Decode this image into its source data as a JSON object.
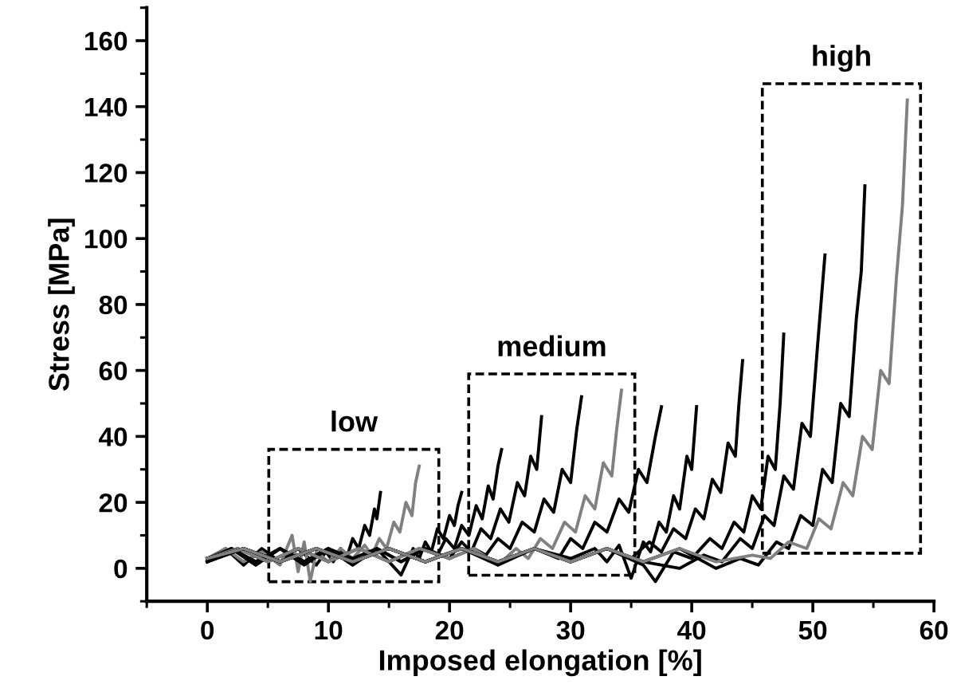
{
  "chart_data": {
    "type": "line",
    "xlabel": "Imposed elongation [%]",
    "ylabel": "Stress [MPa]",
    "xlim": [
      -5,
      60
    ],
    "ylim": [
      -10,
      170
    ],
    "xticks": [
      {
        "value": -5,
        "label": null
      },
      0,
      {
        "value": 5,
        "label": null
      },
      10,
      {
        "value": 15,
        "label": null
      },
      20,
      {
        "value": 25,
        "label": null
      },
      30,
      {
        "value": 35,
        "label": null
      },
      40,
      {
        "value": 45,
        "label": null
      },
      50,
      {
        "value": 55,
        "label": null
      },
      60
    ],
    "yticks": [
      {
        "value": -10,
        "label": null
      },
      0,
      {
        "value": 10,
        "label": null
      },
      20,
      {
        "value": 30,
        "label": null
      },
      40,
      {
        "value": 50,
        "label": null
      },
      60,
      {
        "value": 70,
        "label": null
      },
      80,
      {
        "value": 90,
        "label": null
      },
      100,
      {
        "value": 110,
        "label": null
      },
      120,
      {
        "value": 130,
        "label": null
      },
      140,
      {
        "value": 150,
        "label": null
      },
      160,
      {
        "value": 170,
        "label": null
      }
    ],
    "grid": false,
    "legend": false,
    "marker": "none",
    "line_style": "solid",
    "annotations": [
      "low",
      "medium",
      "high"
    ],
    "series": [
      {
        "color": "#000000",
        "x": [
          0,
          1.5,
          3,
          4.5,
          6,
          7.5,
          9,
          9.8,
          10.4,
          11,
          11.5,
          12,
          12.5,
          13,
          13.4,
          13.8,
          14.0,
          14.3
        ],
        "values": [
          2,
          6,
          1,
          6,
          2,
          6,
          1,
          5,
          2,
          6,
          3,
          9,
          6,
          13,
          10,
          18,
          15,
          23
        ]
      },
      {
        "color": "#808080",
        "x": [
          0,
          1.5,
          3,
          4.5,
          6,
          7,
          7.5,
          8,
          8.5,
          9,
          10,
          11,
          12,
          13,
          13.6,
          14.2,
          14.8,
          15.4,
          15.9,
          16.4,
          16.9,
          17.2,
          17.5
        ],
        "values": [
          3,
          6,
          2,
          5,
          1,
          10,
          -1,
          8,
          -4,
          5,
          2,
          6,
          3,
          7,
          4,
          9,
          6,
          14,
          11,
          20,
          16,
          26,
          31
        ]
      },
      {
        "color": "#000000",
        "x": [
          0,
          2,
          4,
          6,
          8,
          10,
          12,
          14,
          16,
          17,
          17.5,
          18,
          18.5,
          19,
          19.5,
          20,
          20.4,
          20.7,
          21
        ],
        "values": [
          2,
          6,
          1,
          6,
          2,
          6,
          1,
          6,
          -2,
          6,
          3,
          8,
          5,
          12,
          9,
          16,
          13,
          19,
          23
        ]
      },
      {
        "color": "#000000",
        "x": [
          0,
          2,
          4,
          6,
          8,
          10,
          12,
          14,
          16,
          18,
          19,
          19.7,
          20.4,
          21,
          21.6,
          22.2,
          22.7,
          23.2,
          23.6,
          24,
          24.3
        ],
        "values": [
          3,
          6,
          2,
          6,
          1,
          6,
          3,
          6,
          2,
          6,
          4,
          9,
          6,
          13,
          10,
          19,
          15,
          25,
          21,
          31,
          36
        ]
      },
      {
        "color": "#000000",
        "x": [
          0,
          2,
          4,
          6,
          8,
          10,
          12,
          14,
          16,
          18,
          20,
          21,
          21.8,
          22.6,
          23.4,
          24.2,
          24.9,
          25.6,
          26.2,
          26.7,
          27.2,
          27.6
        ],
        "values": [
          2,
          6,
          1,
          6,
          2,
          6,
          1,
          6,
          2,
          6,
          3,
          8,
          5,
          12,
          9,
          18,
          14,
          26,
          22,
          34,
          30,
          46
        ]
      },
      {
        "color": "#000000",
        "x": [
          0,
          2.5,
          5,
          7.5,
          10,
          12.5,
          15,
          17.5,
          20,
          22,
          23,
          24,
          25,
          26,
          27,
          27.8,
          28.6,
          29.3,
          30,
          30.5,
          30.9
        ],
        "values": [
          3,
          6,
          2,
          6,
          2,
          6,
          2,
          6,
          3,
          6,
          4,
          9,
          6,
          14,
          11,
          21,
          17,
          30,
          26,
          42,
          52
        ]
      },
      {
        "color": "#808080",
        "x": [
          0,
          2.5,
          5,
          7.5,
          10,
          12.5,
          15,
          17.5,
          20,
          22,
          24,
          25.5,
          26.5,
          27.5,
          28.5,
          29.5,
          30.4,
          31.2,
          32,
          32.7,
          33.4,
          33.8,
          34.2
        ],
        "values": [
          3,
          6,
          2,
          6,
          2,
          6,
          2,
          6,
          3,
          6,
          1,
          6,
          3,
          9,
          6,
          14,
          11,
          22,
          18,
          32,
          28,
          42,
          54
        ]
      },
      {
        "color": "#000000",
        "x": [
          0,
          3,
          6,
          9,
          12,
          15,
          18,
          21,
          24,
          27,
          29,
          30,
          31,
          32,
          33,
          34,
          34.8,
          35.6,
          36.3,
          37,
          37.5
        ],
        "values": [
          2,
          6,
          2,
          6,
          2,
          6,
          2,
          6,
          1,
          6,
          3,
          9,
          6,
          14,
          11,
          21,
          17,
          30,
          26,
          40,
          49
        ]
      },
      {
        "color": "#000000",
        "x": [
          0,
          3,
          6,
          9,
          12,
          15,
          18,
          21,
          24,
          27,
          30,
          32,
          33,
          34,
          35,
          36,
          36.6,
          37.3,
          37.9,
          38.5,
          39,
          39.6,
          40,
          40.4
        ],
        "values": [
          3,
          6,
          2,
          6,
          2,
          6,
          2,
          6,
          2,
          6,
          3,
          6,
          2,
          7,
          -3,
          8,
          5,
          14,
          11,
          22,
          18,
          34,
          30,
          49
        ]
      },
      {
        "color": "#000000",
        "x": [
          0,
          3,
          6,
          9,
          12,
          15,
          18,
          21,
          24,
          27,
          30,
          33,
          35,
          36.5,
          37.5,
          38.5,
          39.5,
          40.3,
          41,
          41.7,
          42.4,
          43,
          43.6,
          43.9,
          44.2
        ],
        "values": [
          2,
          6,
          2,
          6,
          2,
          6,
          2,
          6,
          2,
          6,
          2,
          6,
          3,
          8,
          5,
          12,
          9,
          18,
          15,
          27,
          23,
          38,
          34,
          50,
          63
        ]
      },
      {
        "color": "#000000",
        "x": [
          0,
          3,
          6,
          9,
          12,
          15,
          18,
          21,
          24,
          27,
          30,
          33,
          36,
          37,
          38.5,
          40,
          41.5,
          42.5,
          43.5,
          44.3,
          45,
          45.7,
          46.3,
          46.9,
          47.3,
          47.6
        ],
        "values": [
          3,
          6,
          2,
          6,
          2,
          6,
          2,
          6,
          2,
          6,
          2,
          6,
          1,
          -4,
          5,
          3,
          9,
          6,
          14,
          11,
          22,
          18,
          34,
          30,
          50,
          71
        ]
      },
      {
        "color": "#000000",
        "x": [
          0,
          3,
          6,
          9,
          12,
          15,
          18,
          21,
          24,
          27,
          30,
          33,
          36,
          39,
          41,
          42.5,
          44,
          45,
          46,
          46.8,
          47.6,
          48.4,
          49.1,
          49.8,
          50.4,
          51
        ],
        "values": [
          2,
          6,
          2,
          6,
          2,
          6,
          2,
          6,
          2,
          6,
          2,
          6,
          2,
          0,
          4,
          2,
          9,
          6,
          16,
          13,
          28,
          24,
          44,
          40,
          68,
          95
        ]
      },
      {
        "color": "#000000",
        "x": [
          0,
          3,
          6,
          9,
          12,
          15,
          18,
          21,
          24,
          27,
          30,
          33,
          36,
          39,
          42,
          44,
          45.5,
          47,
          48,
          49,
          50,
          50.8,
          51.6,
          52.3,
          53,
          53.6,
          54,
          54.3
        ],
        "values": [
          3,
          6,
          2,
          6,
          2,
          6,
          2,
          6,
          2,
          6,
          2,
          6,
          2,
          6,
          0,
          3,
          1,
          8,
          6,
          16,
          13,
          30,
          26,
          50,
          46,
          76,
          90,
          116
        ]
      },
      {
        "color": "#808080",
        "x": [
          0,
          3,
          6,
          9,
          12,
          15,
          18,
          21,
          24,
          27,
          30,
          33,
          36,
          39,
          42,
          45,
          46.5,
          48,
          49.5,
          50.5,
          51.5,
          52.5,
          53.3,
          54.1,
          54.9,
          55.6,
          56.3,
          56.9,
          57.4,
          57.8
        ],
        "values": [
          3,
          6,
          2,
          6,
          2,
          6,
          2,
          6,
          2,
          6,
          2,
          6,
          2,
          6,
          2,
          4,
          3,
          8,
          6,
          15,
          12,
          26,
          22,
          40,
          36,
          60,
          56,
          88,
          110,
          142
        ]
      }
    ]
  }
}
